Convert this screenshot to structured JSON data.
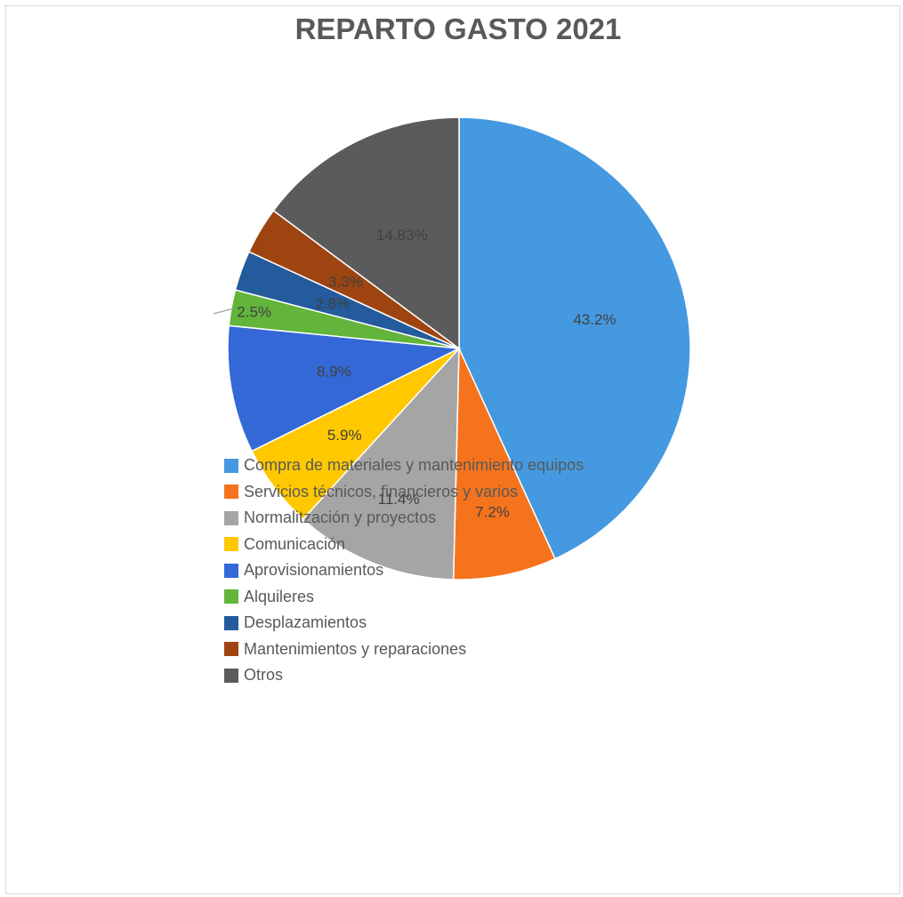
{
  "chart_data": {
    "type": "pie",
    "title": "REPARTO GASTO 2021",
    "slices": [
      {
        "name": "Compra de materiales y mantenimiento equipos",
        "value": 43.2,
        "label": "43.2%",
        "color": "#4599e0"
      },
      {
        "name": "Servicios técnicos, financieros y varios",
        "value": 7.2,
        "label": "7.2%",
        "color": "#f5731c"
      },
      {
        "name": "Normalitzación y proyectos",
        "value": 11.4,
        "label": "11.4%",
        "color": "#a5a5a5"
      },
      {
        "name": "Comunicación",
        "value": 5.9,
        "label": "5.9%",
        "color": "#ffc800"
      },
      {
        "name": "Aprovisionamientos",
        "value": 8.9,
        "label": "8.9%",
        "color": "#3468d6"
      },
      {
        "name": "Alquileres",
        "value": 2.5,
        "label": "2.5%",
        "color": "#62b43a"
      },
      {
        "name": "Desplazamientos",
        "value": 2.8,
        "label": "2.8%",
        "color": "#245b9c"
      },
      {
        "name": "Mantenimientos y reparaciones",
        "value": 3.3,
        "label": "3.3%",
        "color": "#9e4410"
      },
      {
        "name": "Otros",
        "value": 14.83,
        "label": "14.83%",
        "color": "#5b5b5b"
      }
    ],
    "legend_position": "overlapping-left"
  }
}
